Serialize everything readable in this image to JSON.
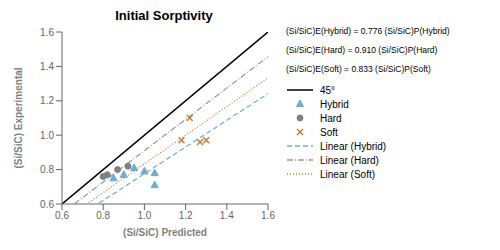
{
  "chart_data": {
    "type": "scatter",
    "title": "Initial Sorptivity",
    "x_label": "(Si/SiC) Predicted",
    "y_label": "(Si/SiC) Experimental",
    "xlim": [
      0.6,
      1.6
    ],
    "ylim": [
      0.6,
      1.6
    ],
    "xticks": [
      0.6,
      0.8,
      {
        "value": 1,
        "label": "1.0"
      },
      1.2,
      1.4,
      1.6
    ],
    "yticks": [
      0.6,
      0.8,
      {
        "value": 1,
        "label": "1.0"
      },
      1.2,
      1.4,
      1.6
    ],
    "grid": false,
    "annotations": [
      "(Si/SiC)E(Hybrid) = 0.776 (Si/SiC)P(Hybrid)",
      "(Si/SiC)E(Hard) = 0.910 (Si/SiC)P(Hard)",
      "(Si/SiC)E(Soft) = 0.833 (Si/SiC)P(Soft)"
    ],
    "series": [
      {
        "name": "45°",
        "type": "line",
        "line_style": "solid",
        "color": "#000000",
        "x": [
          0.6,
          1.6
        ],
        "values": [
          0.6,
          1.6
        ]
      },
      {
        "name": "Hybrid",
        "type": "scatter",
        "marker": "triangle",
        "color": "#6baed6",
        "x": [
          0.85,
          0.9,
          0.95,
          1.0,
          1.05,
          1.05
        ],
        "values": [
          0.75,
          0.77,
          0.81,
          0.79,
          0.78,
          0.71
        ]
      },
      {
        "name": "Hard",
        "type": "scatter",
        "marker": "circle",
        "color": "#808080",
        "x": [
          0.8,
          0.82,
          0.87,
          0.92
        ],
        "values": [
          0.76,
          0.77,
          0.8,
          0.82
        ]
      },
      {
        "name": "Soft",
        "type": "scatter",
        "marker": "x",
        "color": "#c97b2d",
        "x": [
          1.18,
          1.22,
          1.27,
          1.3
        ],
        "values": [
          0.97,
          1.1,
          0.96,
          0.97
        ]
      },
      {
        "name": "Linear (Hybrid)",
        "type": "line",
        "line_style": "dashed",
        "color": "#6baed6",
        "x": [
          0.78,
          1.6
        ],
        "values": [
          0.60528,
          1.2416
        ]
      },
      {
        "name": "Linear (Hard)",
        "type": "line",
        "line_style": "dashdot",
        "color": "#969696",
        "x": [
          0.66,
          1.6
        ],
        "values": [
          0.6006,
          1.456
        ]
      },
      {
        "name": "Linear (Soft)",
        "type": "line",
        "line_style": "dotted",
        "color": "#c97b2d",
        "x": [
          0.73,
          1.6
        ],
        "values": [
          0.60809,
          1.3328
        ]
      }
    ]
  }
}
